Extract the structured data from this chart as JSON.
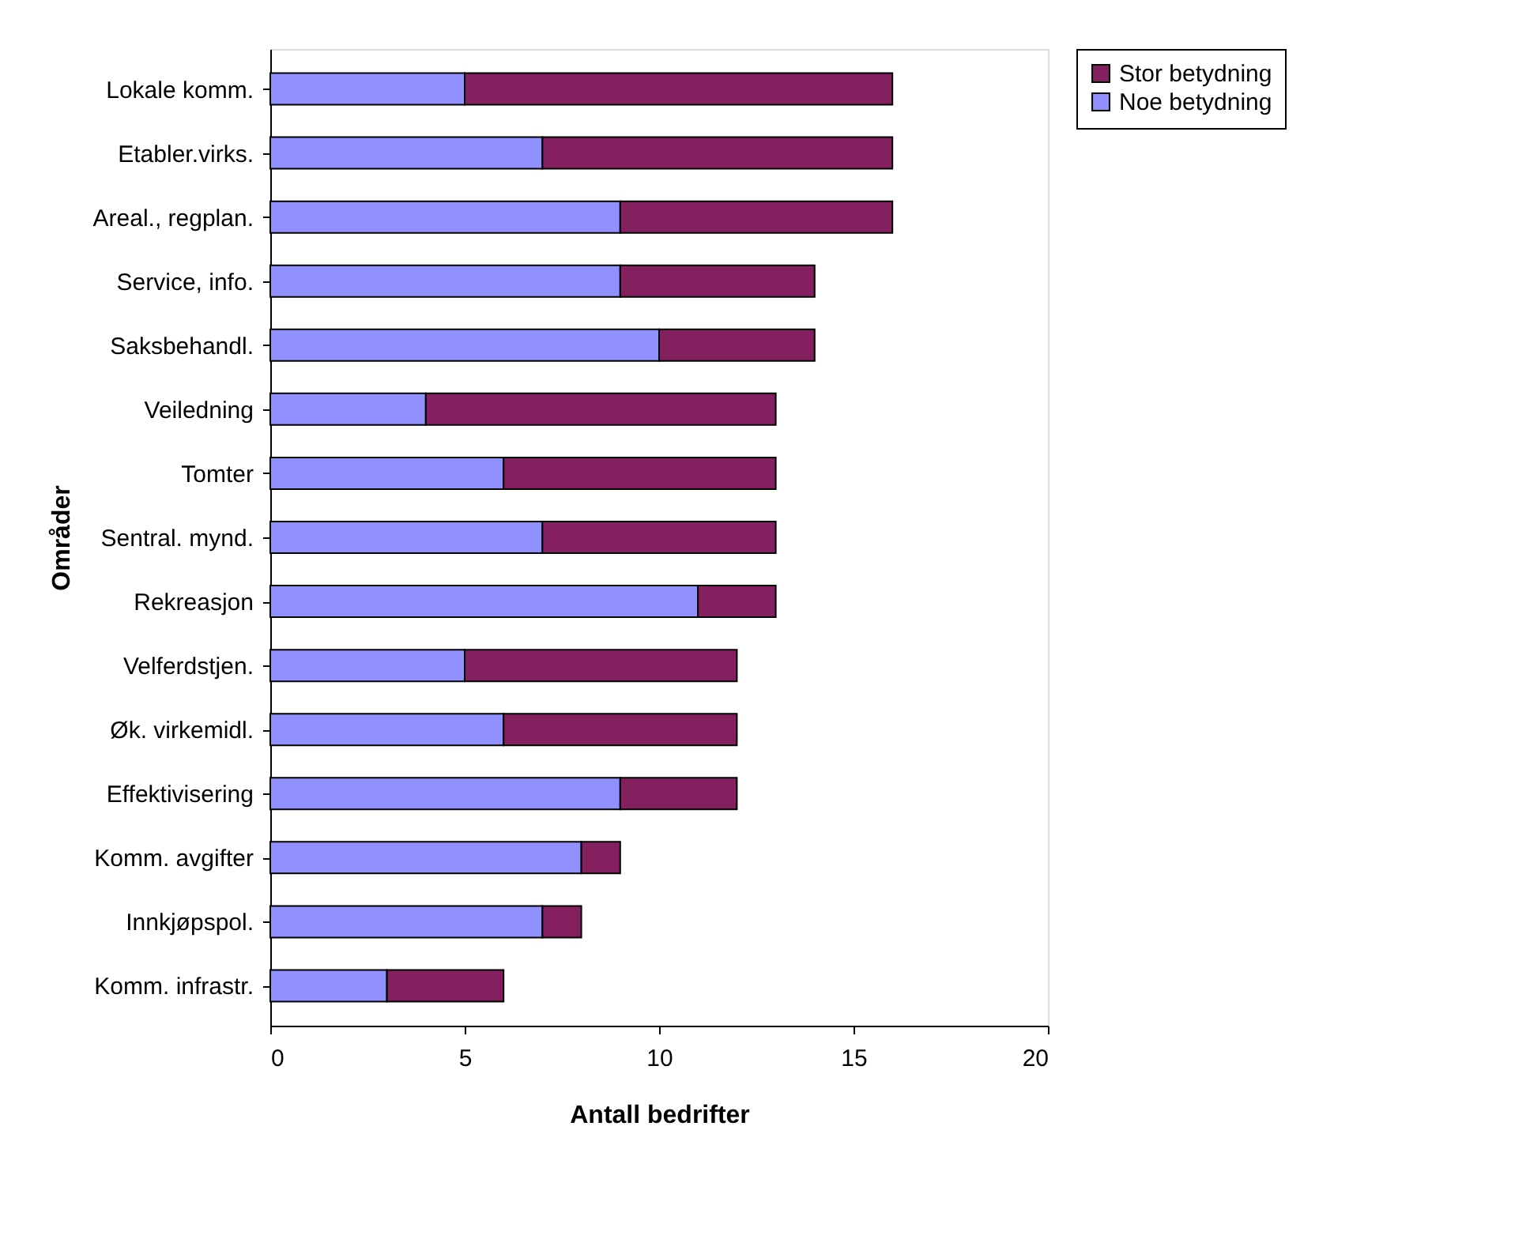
{
  "chart_data": {
    "type": "bar",
    "orientation": "horizontal",
    "stacked": true,
    "xlabel": "Antall bedrifter",
    "ylabel": "Områder",
    "categories": [
      "Lokale komm.",
      "Etabler.virks.",
      "Areal., regplan.",
      "Service, info.",
      "Saksbehandl.",
      "Veiledning",
      "Tomter",
      "Sentral. mynd.",
      "Rekreasjon",
      "Velferdstjen.",
      "Øk. virkemidl.",
      "Effektivisering",
      "Komm. avgifter",
      "Innkjøpspol.",
      "Komm. infrastr."
    ],
    "series": [
      {
        "name": "Noe betydning",
        "color": "#9090ff",
        "values": [
          5,
          7,
          9,
          9,
          10,
          4,
          6,
          7,
          11,
          5,
          6,
          9,
          8,
          7,
          3
        ]
      },
      {
        "name": "Stor betydning",
        "color": "#84205f",
        "values": [
          11,
          9,
          7,
          5,
          4,
          9,
          7,
          6,
          2,
          7,
          6,
          3,
          1,
          1,
          3
        ]
      }
    ],
    "xlim": [
      0,
      20
    ],
    "xticks": [
      0,
      5,
      10,
      15,
      20
    ],
    "grid": false,
    "legend": "right"
  }
}
